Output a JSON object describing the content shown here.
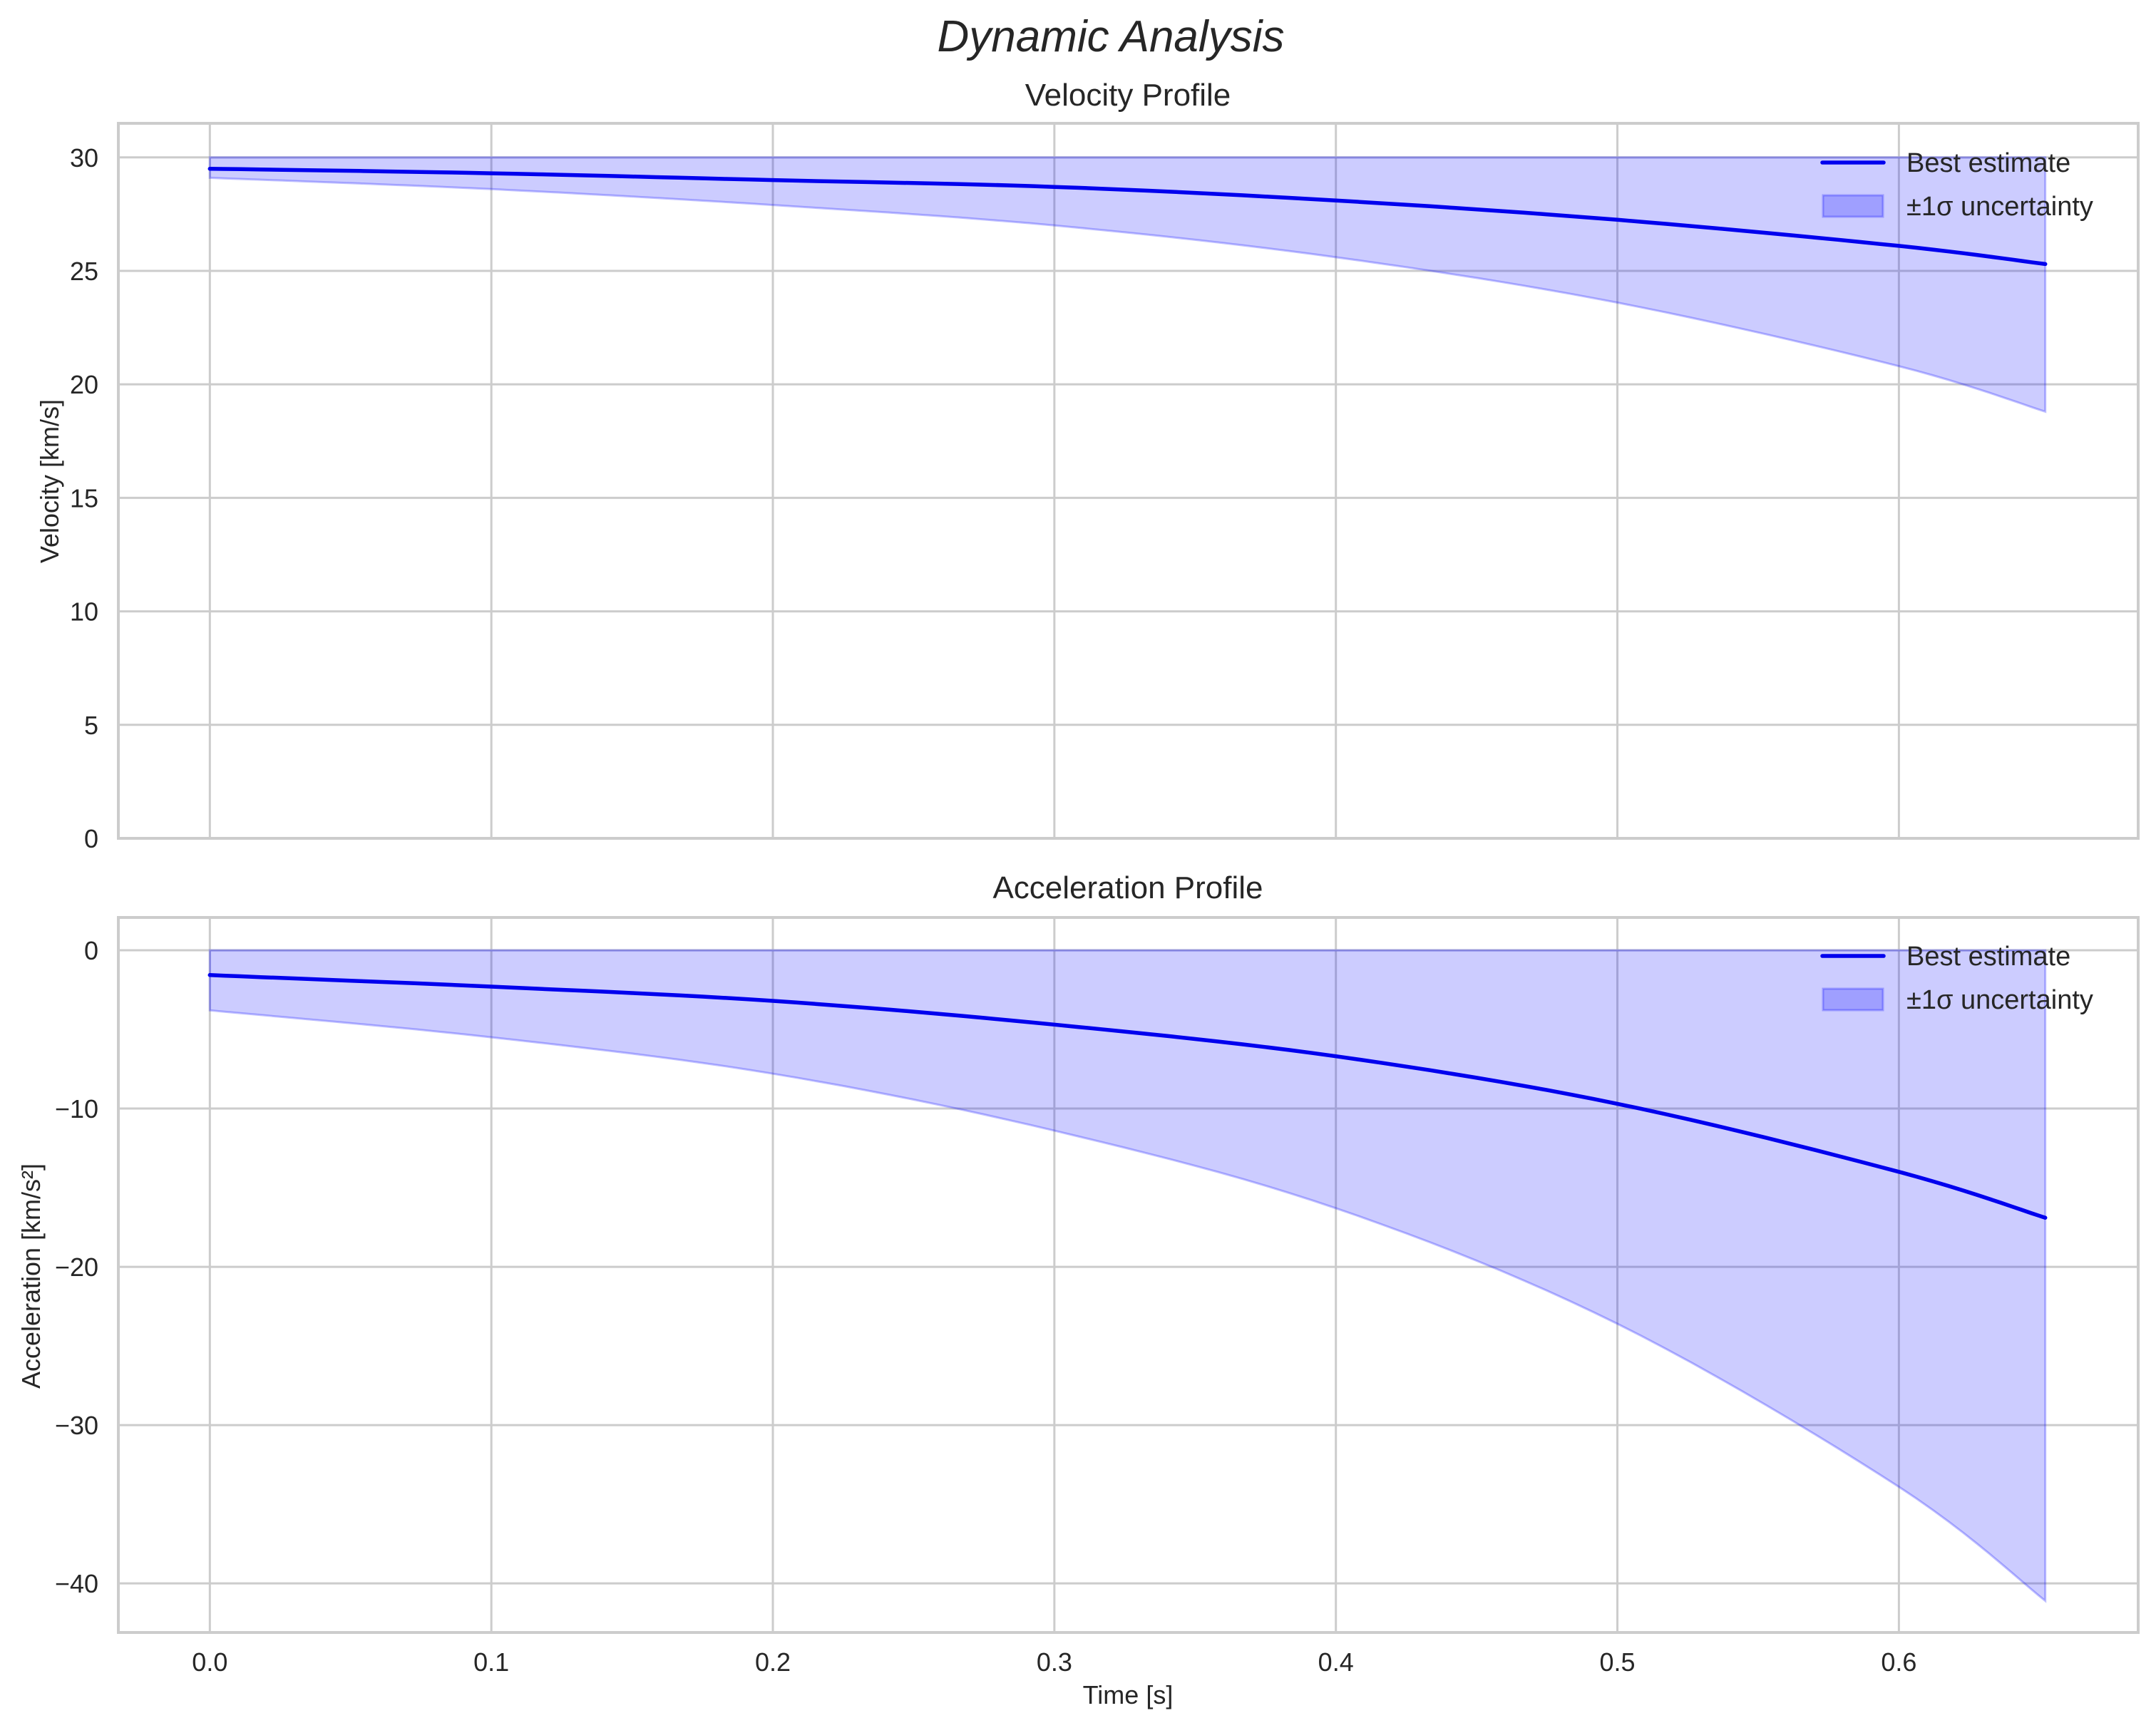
{
  "figure": {
    "suptitle": "Dynamic Analysis",
    "shared_xlabel": "Time [s]"
  },
  "colors": {
    "line": "#0000ee",
    "band_fill": "#0000ff",
    "band_alpha": 0.2,
    "grid": "#cccccc",
    "spine": "#cccccc",
    "text": "#262626"
  },
  "legend": {
    "entries": [
      {
        "label": "Best estimate",
        "kind": "line"
      },
      {
        "label": "±1σ uncertainty",
        "kind": "patch"
      }
    ],
    "position": "upper right"
  },
  "chart_data": [
    {
      "type": "line",
      "title": "Velocity Profile",
      "xlabel": "",
      "ylabel": "Velocity [km/s]",
      "xlim": [
        -0.0325,
        0.685
      ],
      "ylim": [
        0,
        31.5
      ],
      "xticks": [
        0.0,
        0.1,
        0.2,
        0.3,
        0.4,
        0.5,
        0.6
      ],
      "xtick_labels": [
        "",
        "",
        "",
        "",
        "",
        "",
        ""
      ],
      "yticks": [
        0,
        5,
        10,
        15,
        20,
        25,
        30
      ],
      "ytick_labels": [
        "0",
        "5",
        "10",
        "15",
        "20",
        "25",
        "30"
      ],
      "grid": true,
      "legend_position": "upper right",
      "x": [
        0.0,
        0.1,
        0.2,
        0.3,
        0.4,
        0.5,
        0.6,
        0.652
      ],
      "series": [
        {
          "name": "Best estimate",
          "values": [
            29.5,
            29.3,
            29.0,
            28.7,
            28.1,
            27.25,
            26.1,
            25.3
          ]
        },
        {
          "name": "±1σ uncertainty (upper)",
          "values": [
            30.0,
            30.0,
            30.0,
            30.0,
            30.0,
            30.0,
            30.0,
            30.0
          ]
        },
        {
          "name": "±1σ uncertainty (lower)",
          "values": [
            29.1,
            28.6,
            27.9,
            27.0,
            25.6,
            23.6,
            20.8,
            18.8
          ]
        }
      ]
    },
    {
      "type": "line",
      "title": "Acceleration Profile",
      "xlabel": "Time [s]",
      "ylabel": "Acceleration [km/s²]",
      "xlim": [
        -0.0325,
        0.685
      ],
      "ylim": [
        -43.1,
        2.07
      ],
      "xticks": [
        0.0,
        0.1,
        0.2,
        0.3,
        0.4,
        0.5,
        0.6
      ],
      "xtick_labels": [
        "0.0",
        "0.1",
        "0.2",
        "0.3",
        "0.4",
        "0.5",
        "0.6"
      ],
      "yticks": [
        0,
        -10,
        -20,
        -30,
        -40
      ],
      "ytick_labels": [
        "0",
        "−10",
        "−20",
        "−30",
        "−40"
      ],
      "grid": true,
      "legend_position": "upper right",
      "x": [
        0.0,
        0.1,
        0.2,
        0.3,
        0.4,
        0.5,
        0.6,
        0.652
      ],
      "series": [
        {
          "name": "Best estimate",
          "values": [
            -1.57,
            -2.3,
            -3.2,
            -4.7,
            -6.7,
            -9.7,
            -14.0,
            -16.9
          ]
        },
        {
          "name": "±1σ uncertainty (upper)",
          "values": [
            0,
            0,
            0,
            0,
            0,
            0,
            0,
            0
          ]
        },
        {
          "name": "±1σ uncertainty (lower)",
          "values": [
            -3.8,
            -5.5,
            -7.8,
            -11.4,
            -16.3,
            -23.6,
            -33.9,
            -41.1
          ]
        }
      ]
    }
  ]
}
